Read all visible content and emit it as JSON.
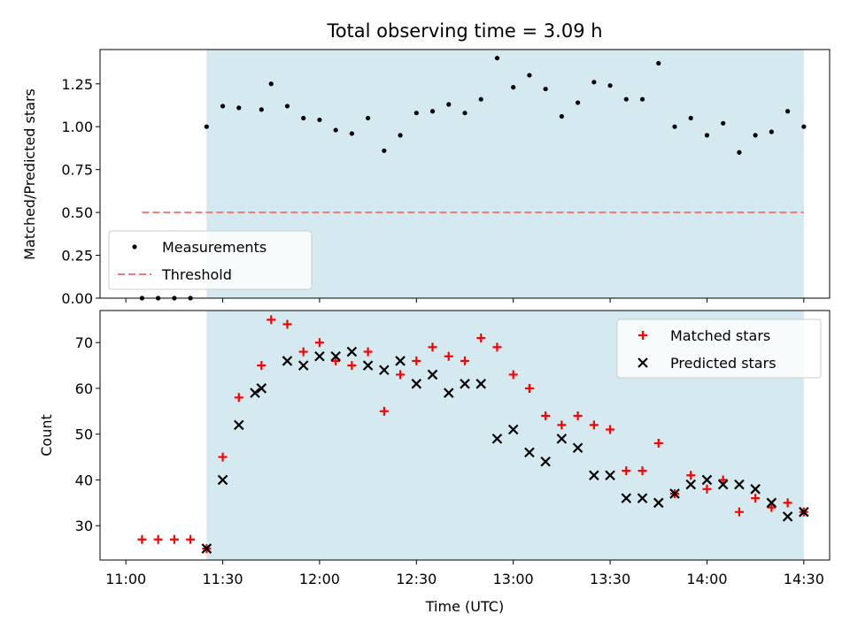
{
  "chart_data": [
    {
      "type": "scatter",
      "title": "Total observing time = 3.09 h",
      "xlabel": "",
      "ylabel": "Matched/Predicted stars",
      "xlim_minutes_utc": [
        652,
        878
      ],
      "ylim": [
        0,
        1.45
      ],
      "yticks": [
        0.0,
        0.25,
        0.5,
        0.75,
        1.0,
        1.25
      ],
      "ytick_labels": [
        "0.00",
        "0.25",
        "0.50",
        "0.75",
        "1.00",
        "1.25"
      ],
      "observing_window_utc": [
        "11:25",
        "14:30"
      ],
      "observing_window_color": "#d4eaf0",
      "legend": {
        "position": "lower-left",
        "entries": [
          "Measurements",
          "Threshold"
        ]
      },
      "threshold": {
        "name": "Threshold",
        "value": 0.5,
        "x_range_utc": [
          "11:05",
          "14:30"
        ],
        "color": "#f07a7a"
      },
      "series": [
        {
          "name": "Measurements",
          "color": "#000000",
          "x": [
            "11:05",
            "11:10",
            "11:15",
            "11:20",
            "11:25",
            "11:30",
            "11:35",
            "11:42",
            "11:45",
            "11:50",
            "11:55",
            "12:00",
            "12:05",
            "12:10",
            "12:15",
            "12:20",
            "12:25",
            "12:30",
            "12:35",
            "12:40",
            "12:45",
            "12:50",
            "12:55",
            "13:00",
            "13:05",
            "13:10",
            "13:15",
            "13:20",
            "13:25",
            "13:30",
            "13:35",
            "13:40",
            "13:45",
            "13:50",
            "13:55",
            "14:00",
            "14:05",
            "14:10",
            "14:15",
            "14:20",
            "14:25",
            "14:30"
          ],
          "y": [
            0.0,
            0.0,
            0.0,
            0.0,
            1.0,
            1.12,
            1.11,
            1.1,
            1.25,
            1.12,
            1.05,
            1.04,
            0.98,
            0.96,
            1.05,
            0.86,
            0.95,
            1.08,
            1.09,
            1.13,
            1.08,
            1.16,
            1.4,
            1.23,
            1.3,
            1.22,
            1.06,
            1.14,
            1.26,
            1.24,
            1.16,
            1.16,
            1.37,
            1.0,
            1.05,
            0.95,
            1.02,
            0.85,
            0.95,
            0.97,
            1.09,
            1.0
          ]
        }
      ]
    },
    {
      "type": "scatter",
      "title": "",
      "xlabel": "Time (UTC)",
      "ylabel": "Count",
      "xlim_minutes_utc": [
        652,
        878
      ],
      "ylim": [
        22.5,
        77
      ],
      "yticks": [
        30,
        40,
        50,
        60,
        70
      ],
      "ytick_labels": [
        "30",
        "40",
        "50",
        "60",
        "70"
      ],
      "xticks_utc": [
        "11:00",
        "11:30",
        "12:00",
        "12:30",
        "13:00",
        "13:30",
        "14:00",
        "14:30"
      ],
      "observing_window_utc": [
        "11:25",
        "14:30"
      ],
      "observing_window_color": "#d4eaf0",
      "legend": {
        "position": "top-right",
        "entries": [
          "Matched stars",
          "Predicted stars"
        ]
      },
      "series": [
        {
          "name": "Matched stars",
          "marker": "plus",
          "color": "#ff0000",
          "x": [
            "11:05",
            "11:10",
            "11:15",
            "11:20",
            "11:25",
            "11:30",
            "11:35",
            "11:42",
            "11:45",
            "11:50",
            "11:55",
            "12:00",
            "12:05",
            "12:10",
            "12:15",
            "12:20",
            "12:25",
            "12:30",
            "12:35",
            "12:40",
            "12:45",
            "12:50",
            "12:55",
            "13:00",
            "13:05",
            "13:10",
            "13:15",
            "13:20",
            "13:25",
            "13:30",
            "13:35",
            "13:40",
            "13:45",
            "13:50",
            "13:55",
            "14:00",
            "14:05",
            "14:10",
            "14:15",
            "14:20",
            "14:25",
            "14:30"
          ],
          "y": [
            27,
            27,
            27,
            27,
            25,
            45,
            58,
            65,
            75,
            74,
            68,
            70,
            66,
            65,
            68,
            55,
            63,
            66,
            69,
            67,
            66,
            71,
            69,
            63,
            60,
            54,
            52,
            54,
            52,
            51,
            42,
            42,
            48,
            37,
            41,
            38,
            40,
            33,
            36,
            34,
            35,
            33
          ]
        },
        {
          "name": "Predicted stars",
          "marker": "x",
          "color": "#000000",
          "x": [
            "11:25",
            "11:30",
            "11:35",
            "11:40",
            "11:42",
            "11:50",
            "11:55",
            "12:00",
            "12:05",
            "12:10",
            "12:15",
            "12:20",
            "12:25",
            "12:30",
            "12:35",
            "12:40",
            "12:45",
            "12:50",
            "12:55",
            "13:00",
            "13:05",
            "13:10",
            "13:15",
            "13:20",
            "13:25",
            "13:30",
            "13:35",
            "13:40",
            "13:45",
            "13:50",
            "13:55",
            "14:00",
            "14:05",
            "14:10",
            "14:15",
            "14:20",
            "14:25",
            "14:30"
          ],
          "y": [
            25,
            40,
            52,
            59,
            60,
            66,
            65,
            67,
            67,
            68,
            65,
            64,
            66,
            61,
            63,
            59,
            61,
            61,
            49,
            51,
            46,
            44,
            49,
            47,
            41,
            41,
            36,
            36,
            35,
            37,
            39,
            40,
            39,
            39,
            38,
            35,
            32,
            33
          ]
        }
      ]
    }
  ]
}
